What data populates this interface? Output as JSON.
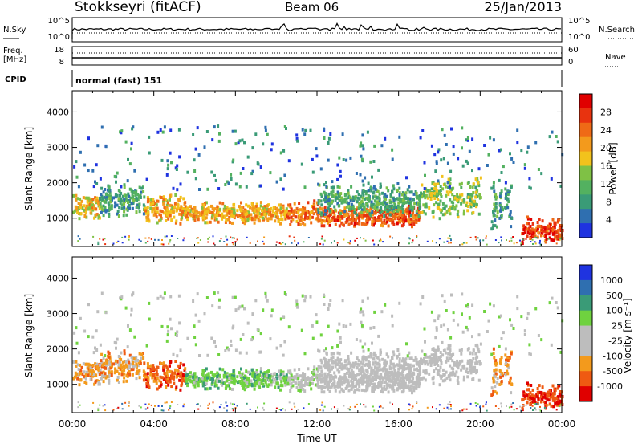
{
  "header": {
    "station": "Stokkseyri (fitACF)",
    "beam": "Beam 06",
    "date": "25/Jan/2013"
  },
  "colors": {
    "power_scale": [
      "#1f33e0",
      "#2f6fb0",
      "#3a9b77",
      "#53b160",
      "#7fc145",
      "#f2c21c",
      "#f39a1c",
      "#ef6a16",
      "#e8330f",
      "#e00000"
    ],
    "velocity_scale": [
      "#e00000",
      "#ef5a12",
      "#f39a1c",
      "#bdbdbd",
      "#bdbdbd",
      "#6fd23f",
      "#3a9b77",
      "#2f6fb0",
      "#1f33e0"
    ],
    "ground_scatter": "#bdbdbd"
  },
  "chart_data": [
    {
      "type": "line",
      "panel": "noise",
      "left_label": "N.Sky",
      "right_label": "N.Search",
      "left_ticks": [
        "10^5",
        "10^0"
      ],
      "right_ticks": [
        "10^5",
        "10^0"
      ]
    },
    {
      "type": "line",
      "panel": "frequency",
      "left_label_1": "Freq.",
      "left_label_2": "[MHz]",
      "right_label": "Nave",
      "left_ticks": [
        "18",
        "8"
      ],
      "right_ticks": [
        "60",
        "0"
      ]
    },
    {
      "type": "table",
      "panel": "cpid",
      "label": "CPID",
      "mode_text": "normal (fast) 151"
    },
    {
      "type": "heatmap",
      "panel": "power",
      "ylabel": "Slant Range [km]",
      "y_ticks": [
        1000,
        2000,
        3000,
        4000
      ],
      "ylim": [
        200,
        4600
      ],
      "xlim": [
        0,
        24
      ],
      "colorbar_label": "Power [dB]",
      "colorbar_ticks": [
        4,
        8,
        12,
        16,
        20,
        24,
        28
      ]
    },
    {
      "type": "heatmap",
      "panel": "velocity",
      "ylabel": "Slant Range [km]",
      "y_ticks": [
        1000,
        2000,
        3000,
        4000
      ],
      "ylim": [
        200,
        4600
      ],
      "xlim": [
        0,
        24
      ],
      "x_tick_labels": [
        "00:00",
        "04:00",
        "08:00",
        "12:00",
        "16:00",
        "20:00",
        "00:00"
      ],
      "xlabel": "Time UT",
      "colorbar_label": "Velocity [m s⁻¹]",
      "colorbar_ticks": [
        1000,
        500,
        100,
        25,
        -25,
        -100,
        -500,
        -1000
      ]
    }
  ]
}
